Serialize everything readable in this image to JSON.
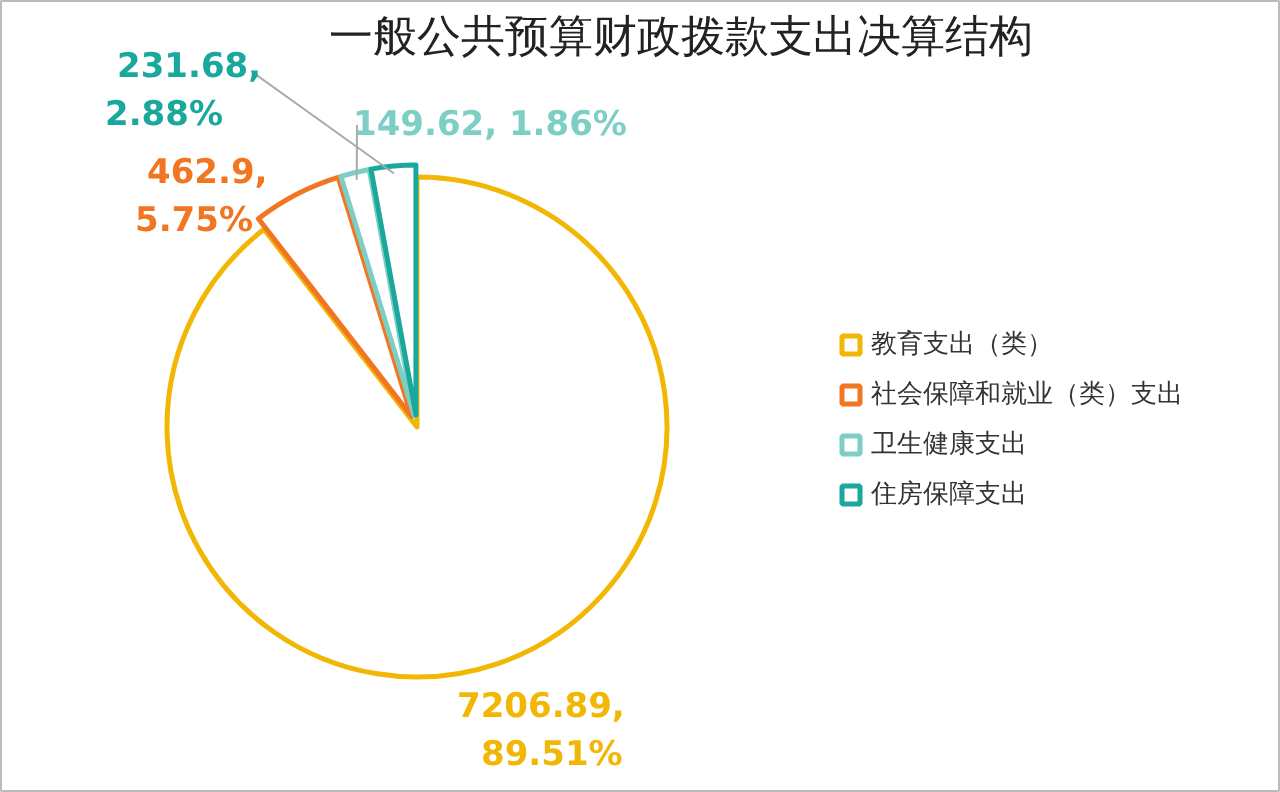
{
  "chart_data": {
    "type": "pie",
    "title": "一般公共预算财政拨款支出决算结构",
    "categories": [
      "教育支出（类）",
      "社会保障和就业（类）支出",
      "卫生健康支出",
      "住房保障支出"
    ],
    "values": [
      7206.89,
      462.9,
      149.62,
      231.68
    ],
    "colors": [
      "#f2b705",
      "#f27522",
      "#7dcfc5",
      "#1ba89c"
    ],
    "value_labels": [
      "7206.89,\n89.51%",
      "462.9,\n5.75%",
      "149.62, 1.86%",
      "231.68,\n2.88%"
    ],
    "legend": "right"
  }
}
